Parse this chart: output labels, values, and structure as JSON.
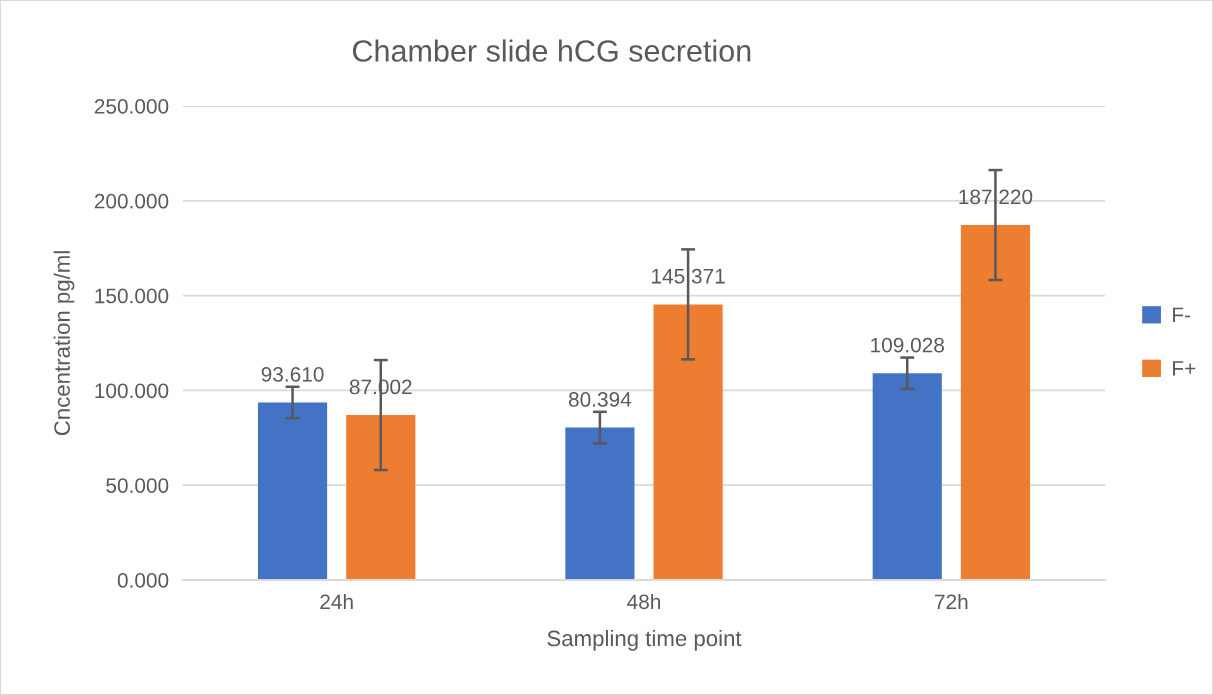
{
  "chart_data": {
    "type": "bar",
    "title": "Chamber slide hCG secretion",
    "xlabel": "Sampling time point",
    "ylabel": "Cncentration pg/ml",
    "categories": [
      "24h",
      "48h",
      "72h"
    ],
    "series": [
      {
        "name": "F-",
        "color": "#4472c4",
        "values": [
          93.61,
          80.394,
          109.028
        ],
        "errors": [
          8.3,
          8.3,
          8.3
        ],
        "value_labels": [
          "93.610",
          "80.394",
          "109.028"
        ]
      },
      {
        "name": "F+",
        "color": "#ed7d31",
        "values": [
          87.002,
          145.371,
          187.22
        ],
        "errors": [
          29,
          29,
          29
        ],
        "value_labels": [
          "87.002",
          "145.371",
          "187.220"
        ]
      }
    ],
    "ylim": [
      0,
      250
    ],
    "yticks": [
      {
        "value": 0,
        "label": "0.000"
      },
      {
        "value": 50,
        "label": "50.000"
      },
      {
        "value": 100,
        "label": "100.000"
      },
      {
        "value": 150,
        "label": "150.000"
      },
      {
        "value": 200,
        "label": "200.000"
      },
      {
        "value": 250,
        "label": "250.000"
      }
    ],
    "grid": "y",
    "legend": "right"
  }
}
